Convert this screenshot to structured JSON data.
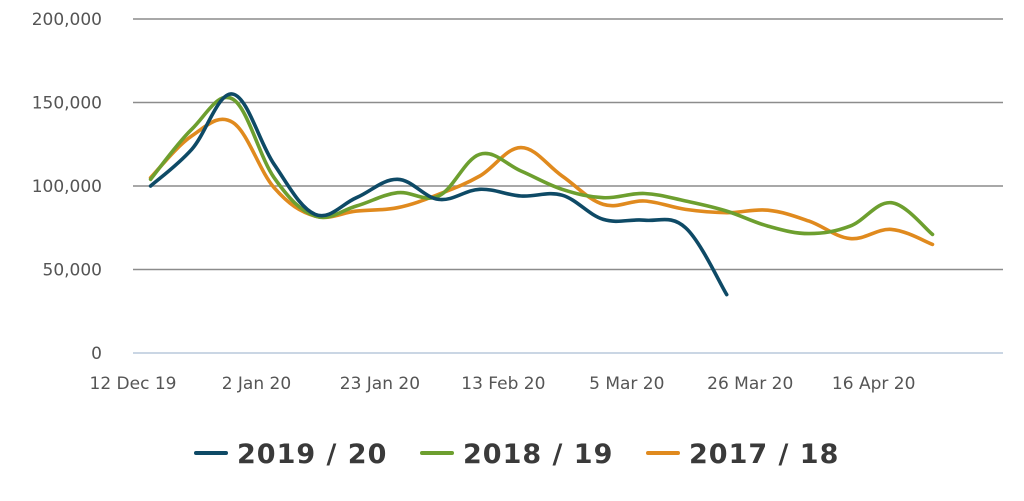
{
  "chart_data": {
    "type": "line",
    "title": "",
    "xlabel": "",
    "ylabel": "",
    "ylim": [
      0,
      200000
    ],
    "yticks": [
      0,
      50000,
      100000,
      150000,
      200000
    ],
    "ytick_labels": [
      "0",
      "50,000",
      "100,000",
      "150,000",
      "200,000"
    ],
    "xlim": [
      "2019-12-12",
      "2020-05-08"
    ],
    "xticks": [
      "2019-12-12",
      "2020-01-02",
      "2020-01-23",
      "2020-02-13",
      "2020-03-05",
      "2020-03-26",
      "2020-04-16"
    ],
    "xtick_labels": [
      "12 Dec 19",
      "2 Jan 20",
      "23 Jan 20",
      "13 Feb 20",
      "5 Mar 20",
      "26 Mar 20",
      "16 Apr 20"
    ],
    "grid": true,
    "legend_position": "bottom",
    "series": [
      {
        "name": "2019 / 20",
        "color": "#0e4a66",
        "points": [
          [
            "2019-12-15",
            100000
          ],
          [
            "2019-12-22",
            122000
          ],
          [
            "2019-12-29",
            155000
          ],
          [
            "2020-01-05",
            113000
          ],
          [
            "2020-01-12",
            83000
          ],
          [
            "2020-01-19",
            93000
          ],
          [
            "2020-01-26",
            104000
          ],
          [
            "2020-02-02",
            92000
          ],
          [
            "2020-02-09",
            98000
          ],
          [
            "2020-02-16",
            94000
          ],
          [
            "2020-02-23",
            94500
          ],
          [
            "2020-03-01",
            80000
          ],
          [
            "2020-03-08",
            79500
          ],
          [
            "2020-03-15",
            75000
          ],
          [
            "2020-03-22",
            35000
          ]
        ]
      },
      {
        "name": "2018 / 19",
        "color": "#6d9f2f",
        "points": [
          [
            "2019-12-15",
            104000
          ],
          [
            "2019-12-22",
            134000
          ],
          [
            "2019-12-29",
            152000
          ],
          [
            "2020-01-05",
            105000
          ],
          [
            "2020-01-12",
            82000
          ],
          [
            "2020-01-19",
            88000
          ],
          [
            "2020-01-26",
            96000
          ],
          [
            "2020-02-02",
            94000
          ],
          [
            "2020-02-09",
            119000
          ],
          [
            "2020-02-16",
            109000
          ],
          [
            "2020-02-23",
            98000
          ],
          [
            "2020-03-01",
            93000
          ],
          [
            "2020-03-08",
            95500
          ],
          [
            "2020-03-15",
            91000
          ],
          [
            "2020-03-22",
            85000
          ],
          [
            "2020-03-29",
            76000
          ],
          [
            "2020-04-05",
            71500
          ],
          [
            "2020-04-12",
            76000
          ],
          [
            "2020-04-19",
            90000
          ],
          [
            "2020-04-26",
            71000
          ]
        ]
      },
      {
        "name": "2017 / 18",
        "color": "#e08a1e",
        "points": [
          [
            "2019-12-15",
            105000
          ],
          [
            "2019-12-22",
            130000
          ],
          [
            "2019-12-29",
            138000
          ],
          [
            "2020-01-05",
            99000
          ],
          [
            "2020-01-12",
            82000
          ],
          [
            "2020-01-19",
            85000
          ],
          [
            "2020-01-26",
            87000
          ],
          [
            "2020-02-02",
            95000
          ],
          [
            "2020-02-09",
            106000
          ],
          [
            "2020-02-16",
            123000
          ],
          [
            "2020-02-23",
            106000
          ],
          [
            "2020-03-01",
            89000
          ],
          [
            "2020-03-08",
            91000
          ],
          [
            "2020-03-15",
            86000
          ],
          [
            "2020-03-22",
            84000
          ],
          [
            "2020-03-29",
            85500
          ],
          [
            "2020-04-05",
            79000
          ],
          [
            "2020-04-12",
            68500
          ],
          [
            "2020-04-19",
            74000
          ],
          [
            "2020-04-26",
            65000
          ]
        ]
      }
    ]
  }
}
